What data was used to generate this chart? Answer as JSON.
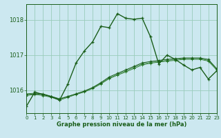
{
  "xlabel": "Graphe pression niveau de la mer (hPa)",
  "bg_color": "#cce8f0",
  "grid_color": "#99ccbb",
  "line_color_dark": "#1a5e1a",
  "line_color_med": "#2a7a2a",
  "xlim": [
    0,
    23
  ],
  "ylim": [
    1015.35,
    1018.45
  ],
  "yticks": [
    1016,
    1017,
    1018
  ],
  "xticks": [
    0,
    1,
    2,
    3,
    4,
    5,
    6,
    7,
    8,
    9,
    10,
    11,
    12,
    13,
    14,
    15,
    16,
    17,
    18,
    19,
    20,
    21,
    22,
    23
  ],
  "series_main": {
    "x": [
      0,
      1,
      2,
      3,
      4,
      5,
      6,
      7,
      8,
      9,
      10,
      11,
      12,
      13,
      14,
      15,
      16,
      17,
      18,
      19,
      20,
      21,
      22,
      23
    ],
    "y": [
      1015.55,
      1015.95,
      1015.88,
      1015.82,
      1015.72,
      1016.18,
      1016.78,
      1017.12,
      1017.38,
      1017.82,
      1017.78,
      1018.18,
      1018.05,
      1018.02,
      1018.05,
      1017.52,
      1016.75,
      1017.0,
      1016.88,
      1016.72,
      1016.58,
      1016.65,
      1016.32,
      1016.55
    ]
  },
  "series_flat1": {
    "x": [
      0,
      1,
      2,
      3,
      4,
      5,
      6,
      7,
      8,
      9,
      10,
      11,
      12,
      13,
      14,
      15,
      16,
      17,
      18,
      19,
      20,
      21,
      22,
      23
    ],
    "y": [
      1015.88,
      1015.9,
      1015.88,
      1015.82,
      1015.75,
      1015.82,
      1015.9,
      1015.98,
      1016.08,
      1016.22,
      1016.38,
      1016.48,
      1016.58,
      1016.68,
      1016.78,
      1016.82,
      1016.85,
      1016.88,
      1016.9,
      1016.92,
      1016.92,
      1016.92,
      1016.88,
      1016.62
    ]
  },
  "series_flat2": {
    "x": [
      0,
      1,
      2,
      3,
      4,
      5,
      6,
      7,
      8,
      9,
      10,
      11,
      12,
      13,
      14,
      15,
      16,
      17,
      18,
      19,
      20,
      21,
      22,
      23
    ],
    "y": [
      1015.85,
      1015.88,
      1015.85,
      1015.8,
      1015.72,
      1015.8,
      1015.88,
      1015.95,
      1016.05,
      1016.18,
      1016.33,
      1016.43,
      1016.52,
      1016.62,
      1016.72,
      1016.77,
      1016.8,
      1016.83,
      1016.85,
      1016.88,
      1016.88,
      1016.88,
      1016.83,
      1016.58
    ]
  },
  "series_flat3": {
    "x": [
      0,
      1,
      2,
      3,
      4,
      5,
      6,
      7,
      8,
      9,
      10,
      11,
      12,
      13,
      14,
      15,
      16,
      17,
      18,
      19,
      20,
      21,
      22,
      23
    ],
    "y": [
      1015.9,
      1015.92,
      1015.9,
      1015.83,
      1015.76,
      1015.83,
      1015.9,
      1015.97,
      1016.07,
      1016.2,
      1016.35,
      1016.45,
      1016.55,
      1016.65,
      1016.75,
      1016.79,
      1016.82,
      1016.85,
      1016.87,
      1016.9,
      1016.9,
      1016.9,
      1016.85,
      1016.6
    ]
  }
}
